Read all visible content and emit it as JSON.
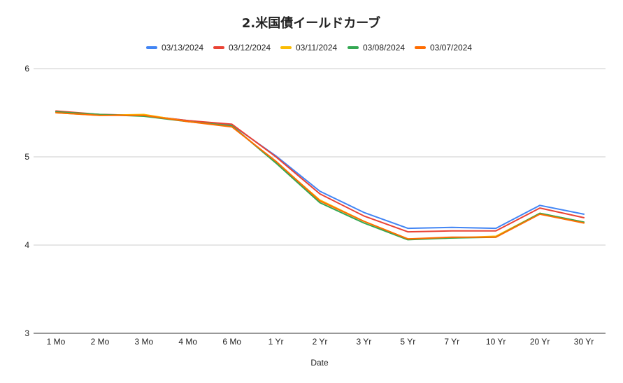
{
  "chart_data": {
    "type": "line",
    "title": "2.米国債イールドカーブ",
    "xlabel": "Date",
    "ylabel": "",
    "categories": [
      "1 Mo",
      "2 Mo",
      "3 Mo",
      "4 Mo",
      "6 Mo",
      "1 Yr",
      "2 Yr",
      "3 Yr",
      "5 Yr",
      "7 Yr",
      "10 Yr",
      "20 Yr",
      "30 Yr"
    ],
    "ylim": [
      3,
      6
    ],
    "yticks": [
      3,
      4,
      5,
      6
    ],
    "grid": true,
    "legend_position": "top",
    "series": [
      {
        "name": "03/13/2024",
        "color": "#4285F4",
        "values": [
          5.51,
          5.48,
          5.47,
          5.41,
          5.36,
          5.01,
          4.61,
          4.37,
          4.19,
          4.2,
          4.19,
          4.45,
          4.35
        ]
      },
      {
        "name": "03/12/2024",
        "color": "#EA4335",
        "values": [
          5.52,
          5.48,
          5.47,
          5.41,
          5.37,
          5.0,
          4.58,
          4.33,
          4.15,
          4.16,
          4.16,
          4.42,
          4.31
        ]
      },
      {
        "name": "03/11/2024",
        "color": "#FBBC04",
        "values": [
          5.5,
          5.47,
          5.48,
          5.4,
          5.35,
          4.94,
          4.51,
          4.27,
          4.07,
          4.08,
          4.1,
          4.36,
          4.26
        ]
      },
      {
        "name": "03/08/2024",
        "color": "#34A853",
        "values": [
          5.51,
          5.48,
          5.46,
          5.4,
          5.35,
          4.93,
          4.48,
          4.25,
          4.06,
          4.08,
          4.09,
          4.36,
          4.26
        ]
      },
      {
        "name": "03/07/2024",
        "color": "#FF6D01",
        "values": [
          5.5,
          5.47,
          5.47,
          5.4,
          5.34,
          4.95,
          4.5,
          4.27,
          4.07,
          4.09,
          4.09,
          4.35,
          4.25
        ]
      }
    ]
  }
}
